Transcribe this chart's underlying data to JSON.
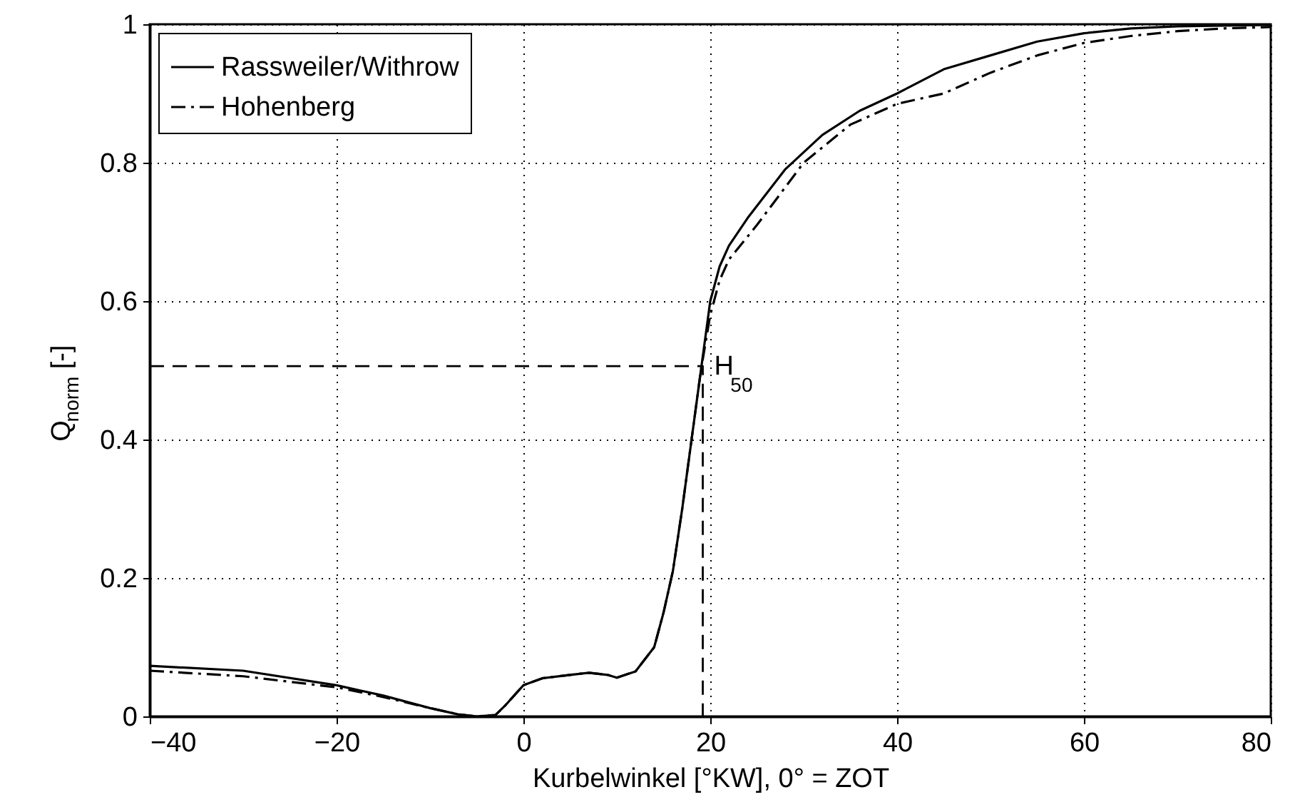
{
  "chart_data": {
    "type": "line",
    "xlabel": "Kurbelwinkel [°KW], 0° = ZOT",
    "ylabel": "Q$_{norm}$ [-]",
    "xlim": [
      -40,
      80
    ],
    "ylim": [
      0,
      1
    ],
    "xticks": [
      -40,
      -20,
      0,
      20,
      40,
      60,
      80
    ],
    "yticks": [
      0,
      0.2,
      0.4,
      0.6,
      0.8,
      1
    ],
    "grid": true,
    "legend": "top left",
    "series": [
      {
        "name": "Rassweiler/Withrow",
        "color": "#000000",
        "line_style": "solid",
        "x": [
          -40,
          -30,
          -20,
          -15,
          -10,
          -7,
          -5,
          -3,
          -2,
          -1,
          0,
          2,
          5,
          7,
          9,
          10,
          12,
          14,
          15,
          16,
          17,
          18,
          19,
          20,
          21,
          22,
          24,
          28,
          32,
          36,
          40,
          45,
          50,
          55,
          60,
          65,
          70,
          75,
          80
        ],
        "values": [
          0.073,
          0.066,
          0.045,
          0.03,
          0.012,
          0.003,
          0.0,
          0.002,
          0.015,
          0.03,
          0.045,
          0.055,
          0.06,
          0.063,
          0.06,
          0.056,
          0.065,
          0.1,
          0.15,
          0.21,
          0.3,
          0.4,
          0.5,
          0.6,
          0.65,
          0.68,
          0.72,
          0.79,
          0.84,
          0.875,
          0.9,
          0.935,
          0.955,
          0.975,
          0.987,
          0.994,
          0.997,
          0.998,
          0.999
        ]
      },
      {
        "name": "Hohenberg",
        "color": "#000000",
        "line_style": "dashdot",
        "x": [
          -40,
          -30,
          -20,
          -15,
          -10,
          -7,
          -5,
          -3,
          -2,
          -1,
          0,
          2,
          5,
          7,
          9,
          10,
          12,
          14,
          15,
          16,
          17,
          18,
          19,
          20,
          21,
          22,
          25,
          30,
          35,
          40,
          45,
          50,
          55,
          60,
          65,
          70,
          75,
          80
        ],
        "values": [
          0.066,
          0.058,
          0.042,
          0.028,
          0.012,
          0.003,
          0.0,
          0.002,
          0.015,
          0.03,
          0.045,
          0.055,
          0.06,
          0.063,
          0.06,
          0.056,
          0.065,
          0.1,
          0.15,
          0.21,
          0.3,
          0.4,
          0.5,
          0.58,
          0.63,
          0.66,
          0.71,
          0.8,
          0.855,
          0.885,
          0.9,
          0.93,
          0.955,
          0.973,
          0.983,
          0.99,
          0.994,
          0.996
        ]
      },
      {
        "color": "#000000",
        "line_style": "dashed",
        "x": [
          -40,
          19.2,
          19.2
        ],
        "values": [
          0.506,
          0.506,
          0
        ]
      }
    ],
    "annotations": [
      {
        "text": "H$_{50}$",
        "x": 19.2,
        "y": 0.506
      }
    ]
  }
}
